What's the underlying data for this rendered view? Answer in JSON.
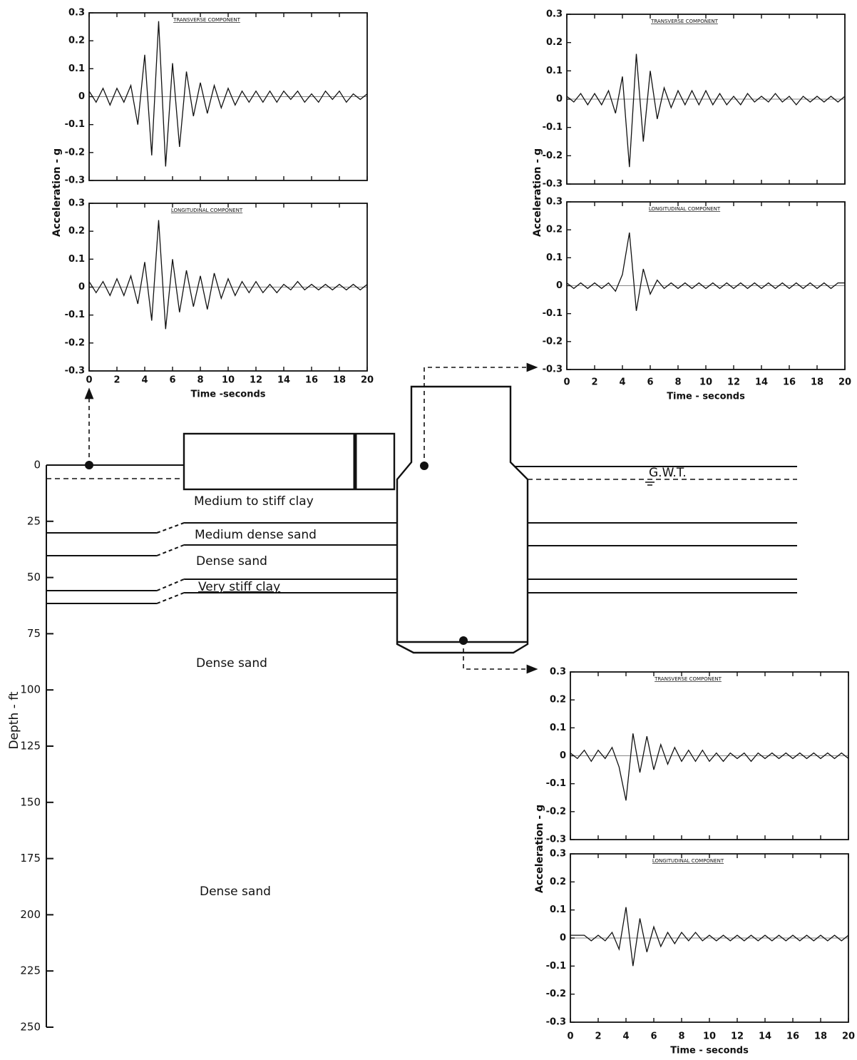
{
  "chart_data": [
    {
      "type": "line",
      "ylabel": "Acceleration - g",
      "xlabel": "Time -seconds",
      "xlim": [
        0,
        20
      ],
      "xticks": [
        0,
        2,
        4,
        6,
        8,
        10,
        12,
        14,
        16,
        18,
        20
      ],
      "ylim": [
        -0.3,
        0.3
      ],
      "yticks": [
        0.3,
        0.2,
        0.1,
        0,
        -0.1,
        -0.2,
        -0.3
      ],
      "color": "#111111",
      "x": [
        0,
        0.5,
        1,
        1.5,
        2,
        2.5,
        3,
        3.5,
        4,
        4.5,
        5,
        5.5,
        6,
        6.5,
        7,
        7.5,
        8,
        8.5,
        9,
        9.5,
        10,
        10.5,
        11,
        11.5,
        12,
        12.5,
        13,
        13.5,
        14,
        14.5,
        15,
        15.5,
        16,
        16.5,
        17,
        17.5,
        18,
        18.5,
        19,
        19.5,
        20
      ],
      "panels": [
        {
          "title": "TRANSVERSE COMPONENT",
          "values": [
            0.02,
            -0.02,
            0.03,
            -0.03,
            0.03,
            -0.02,
            0.04,
            -0.1,
            0.15,
            -0.21,
            0.27,
            -0.25,
            0.12,
            -0.18,
            0.09,
            -0.07,
            0.05,
            -0.06,
            0.04,
            -0.04,
            0.03,
            -0.03,
            0.02,
            -0.02,
            0.02,
            -0.02,
            0.02,
            -0.02,
            0.02,
            -0.01,
            0.02,
            -0.02,
            0.01,
            -0.02,
            0.02,
            -0.01,
            0.02,
            -0.02,
            0.01,
            -0.01,
            0.01
          ]
        },
        {
          "title": "LONGITUDINAL COMPONENT",
          "values": [
            0.02,
            -0.02,
            0.02,
            -0.03,
            0.03,
            -0.03,
            0.04,
            -0.06,
            0.09,
            -0.12,
            0.24,
            -0.15,
            0.1,
            -0.09,
            0.06,
            -0.07,
            0.04,
            -0.08,
            0.05,
            -0.04,
            0.03,
            -0.03,
            0.02,
            -0.02,
            0.02,
            -0.02,
            0.01,
            -0.02,
            0.01,
            -0.01,
            0.02,
            -0.01,
            0.01,
            -0.01,
            0.01,
            -0.01,
            0.01,
            -0.01,
            0.01,
            -0.01,
            0.01
          ]
        }
      ]
    },
    {
      "type": "line",
      "ylabel": "Acceleration - g",
      "xlabel": "Time - seconds",
      "xlim": [
        0,
        20
      ],
      "xticks": [
        0,
        2,
        4,
        6,
        8,
        10,
        12,
        14,
        16,
        18,
        20
      ],
      "ylim": [
        -0.3,
        0.3
      ],
      "yticks": [
        0.3,
        0.2,
        0.1,
        0,
        -0.1,
        -0.2,
        -0.3
      ],
      "color": "#111111",
      "x": [
        0,
        0.5,
        1,
        1.5,
        2,
        2.5,
        3,
        3.5,
        4,
        4.5,
        5,
        5.5,
        6,
        6.5,
        7,
        7.5,
        8,
        8.5,
        9,
        9.5,
        10,
        10.5,
        11,
        11.5,
        12,
        12.5,
        13,
        13.5,
        14,
        14.5,
        15,
        15.5,
        16,
        16.5,
        17,
        17.5,
        18,
        18.5,
        19,
        19.5,
        20
      ],
      "panels": [
        {
          "title": "TRANSVERSE COMPONENT",
          "values": [
            0.01,
            -0.01,
            0.02,
            -0.02,
            0.02,
            -0.02,
            0.03,
            -0.05,
            0.08,
            -0.24,
            0.16,
            -0.15,
            0.1,
            -0.07,
            0.04,
            -0.03,
            0.03,
            -0.02,
            0.03,
            -0.02,
            0.03,
            -0.02,
            0.02,
            -0.02,
            0.01,
            -0.02,
            0.02,
            -0.01,
            0.01,
            -0.01,
            0.02,
            -0.01,
            0.01,
            -0.02,
            0.01,
            -0.01,
            0.01,
            -0.01,
            0.01,
            -0.01,
            0.01
          ]
        },
        {
          "title": "LONGITUDINAL COMPONENT",
          "values": [
            0.01,
            -0.01,
            0.01,
            -0.01,
            0.01,
            -0.01,
            0.01,
            -0.02,
            0.04,
            0.19,
            -0.09,
            0.06,
            -0.03,
            0.02,
            -0.01,
            0.01,
            -0.01,
            0.01,
            -0.01,
            0.01,
            -0.01,
            0.01,
            -0.01,
            0.01,
            -0.01,
            0.01,
            -0.01,
            0.01,
            -0.01,
            0.01,
            -0.01,
            0.01,
            -0.01,
            0.01,
            -0.01,
            0.01,
            -0.01,
            0.01,
            -0.01,
            0.01,
            0.01
          ]
        }
      ]
    },
    {
      "type": "line",
      "ylabel": "Acceleration - g",
      "xlabel": "Time - seconds",
      "xlim": [
        0,
        20
      ],
      "xticks": [
        0,
        2,
        4,
        6,
        8,
        10,
        12,
        14,
        16,
        18,
        20
      ],
      "ylim": [
        -0.3,
        0.3
      ],
      "yticks": [
        0.3,
        0.2,
        0.1,
        0,
        -0.1,
        -0.2,
        -0.3
      ],
      "color": "#111111",
      "x": [
        0,
        0.5,
        1,
        1.5,
        2,
        2.5,
        3,
        3.5,
        4,
        4.5,
        5,
        5.5,
        6,
        6.5,
        7,
        7.5,
        8,
        8.5,
        9,
        9.5,
        10,
        10.5,
        11,
        11.5,
        12,
        12.5,
        13,
        13.5,
        14,
        14.5,
        15,
        15.5,
        16,
        16.5,
        17,
        17.5,
        18,
        18.5,
        19,
        19.5,
        20
      ],
      "panels": [
        {
          "title": "TRANSVERSE COMPONENT",
          "values": [
            0.01,
            -0.01,
            0.02,
            -0.02,
            0.02,
            -0.01,
            0.03,
            -0.04,
            -0.16,
            0.08,
            -0.06,
            0.07,
            -0.05,
            0.04,
            -0.03,
            0.03,
            -0.02,
            0.02,
            -0.02,
            0.02,
            -0.02,
            0.01,
            -0.02,
            0.01,
            -0.01,
            0.01,
            -0.02,
            0.01,
            -0.01,
            0.01,
            -0.01,
            0.01,
            -0.01,
            0.01,
            -0.01,
            0.01,
            -0.01,
            0.01,
            -0.01,
            0.01,
            -0.01
          ]
        },
        {
          "title": "LONGITUDINAL COMPONENT",
          "values": [
            0.01,
            0.01,
            0.01,
            -0.01,
            0.01,
            -0.01,
            0.02,
            -0.04,
            0.11,
            -0.1,
            0.07,
            -0.05,
            0.04,
            -0.03,
            0.02,
            -0.02,
            0.02,
            -0.01,
            0.02,
            -0.01,
            0.01,
            -0.01,
            0.01,
            -0.01,
            0.01,
            -0.01,
            0.01,
            -0.01,
            0.01,
            -0.01,
            0.01,
            -0.01,
            0.01,
            -0.01,
            0.01,
            -0.01,
            0.01,
            -0.01,
            0.01,
            -0.01,
            0.01
          ]
        }
      ]
    }
  ],
  "profile": {
    "ylabel": "Depth - ft",
    "ylim": [
      0,
      250
    ],
    "yticks": [
      0,
      25,
      50,
      75,
      100,
      125,
      150,
      175,
      200,
      225,
      250
    ],
    "layers": [
      "Medium to stiff clay",
      "Medium dense sand",
      "Dense sand",
      "Very stiff clay",
      "Dense sand",
      "Dense sand"
    ],
    "gwt": "G.W.T."
  }
}
